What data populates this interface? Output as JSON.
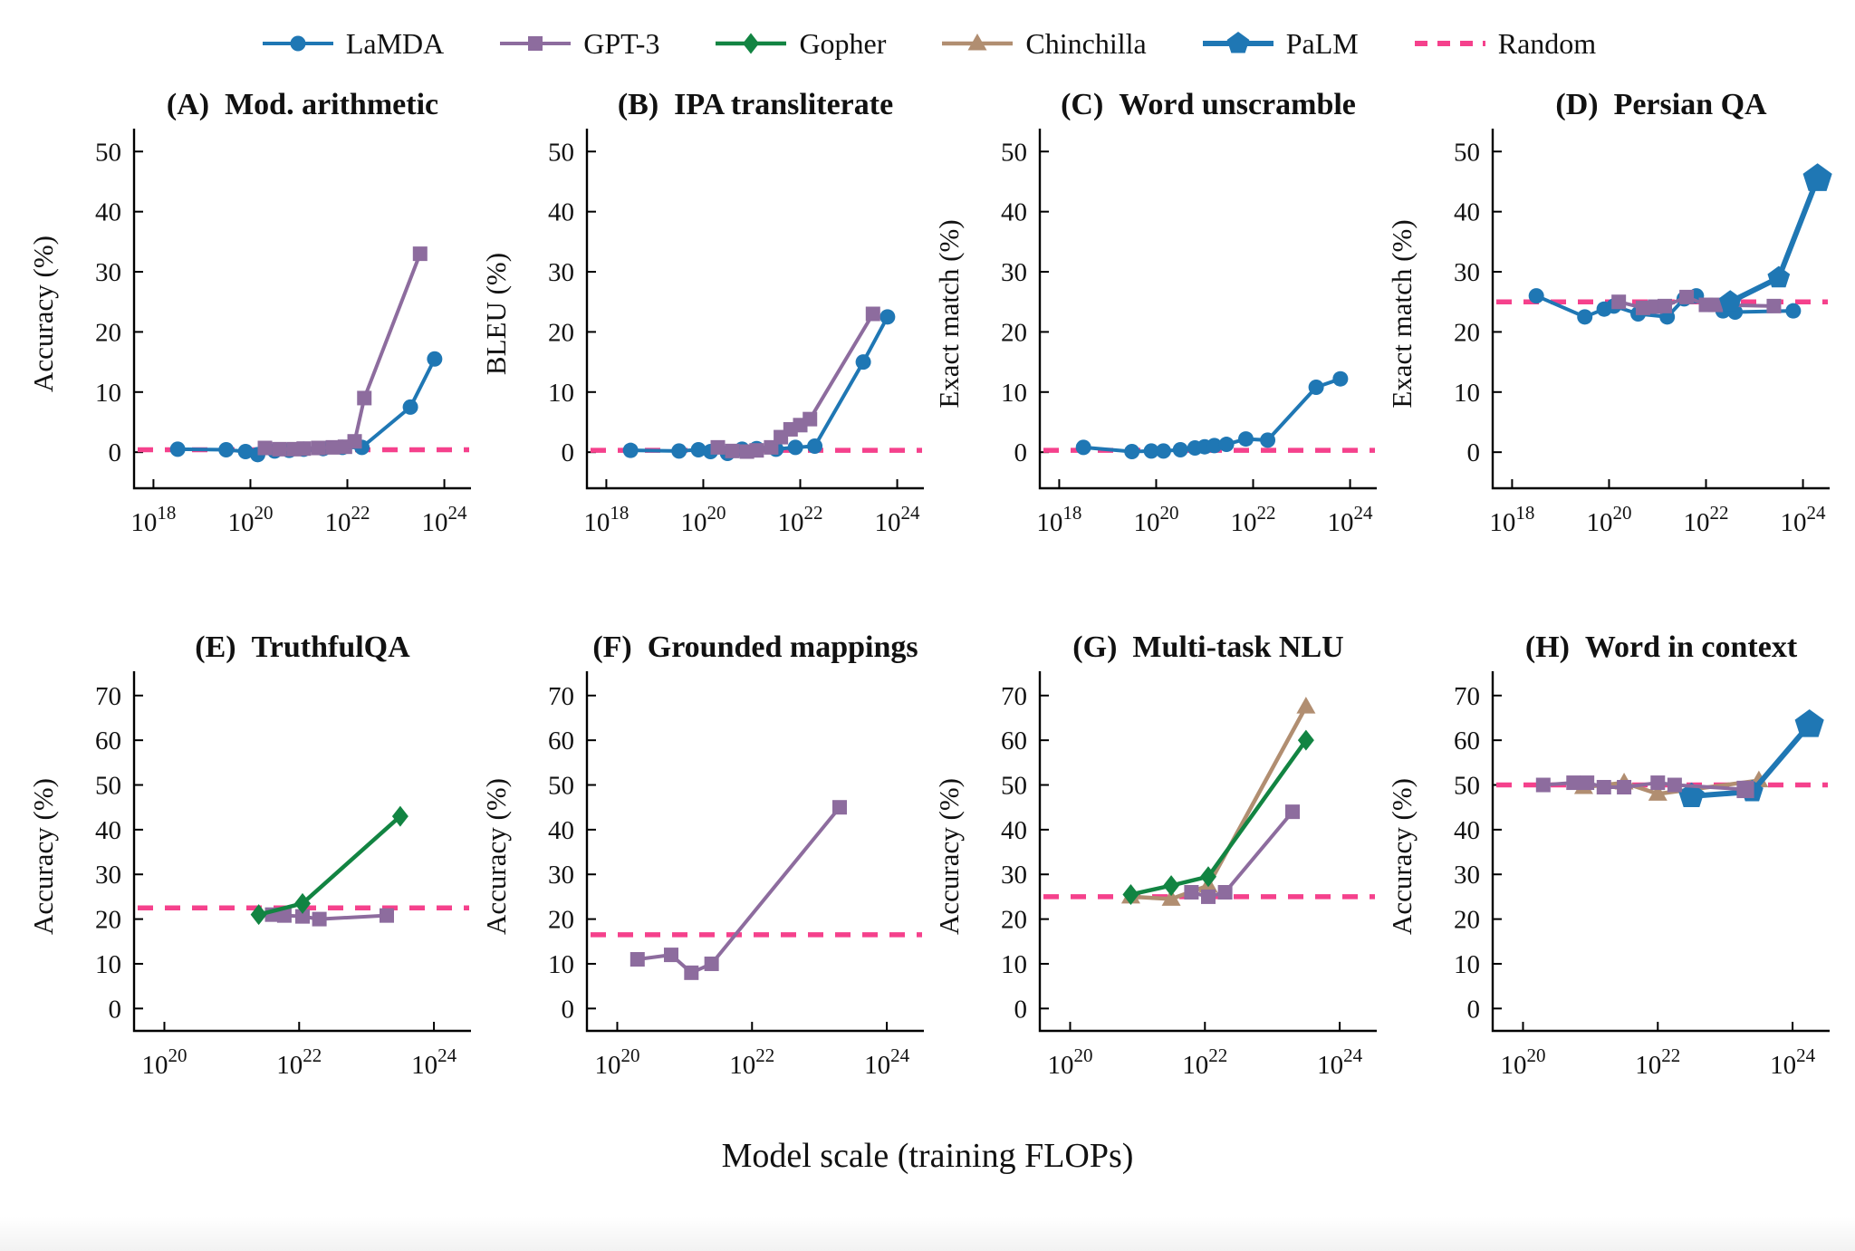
{
  "page": {
    "background": "#ffffff",
    "xaxis_label": "Model scale (training FLOPs)"
  },
  "legend": {
    "position": "top-center",
    "items": [
      {
        "model": "LaMDA",
        "label": "LaMDA"
      },
      {
        "model": "GPT-3",
        "label": "GPT-3"
      },
      {
        "model": "Gopher",
        "label": "Gopher"
      },
      {
        "model": "Chinchilla",
        "label": "Chinchilla"
      },
      {
        "model": "PaLM",
        "label": "PaLM"
      },
      {
        "model": "Random",
        "label": "Random"
      }
    ]
  },
  "models": {
    "LaMDA": {
      "color": "#1f77b4",
      "marker": "circle",
      "line_width": 4
    },
    "GPT-3": {
      "color": "#8d6c9e",
      "marker": "square",
      "line_width": 4
    },
    "Gopher": {
      "color": "#128442",
      "marker": "diamond",
      "line_width": 4.5
    },
    "Chinchilla": {
      "color": "#b18e71",
      "marker": "triangle",
      "line_width": 4.5
    },
    "PaLM": {
      "color": "#1f77b4",
      "marker": "pentagon",
      "line_width": 6
    },
    "Random": {
      "color": "#f5418c",
      "marker": "dash",
      "line_width": 5.5
    }
  },
  "chart_data": [
    {
      "type": "line",
      "id": "a",
      "panel": "(A)",
      "title": "Mod. arithmetic",
      "ylabel": "Accuracy (%)",
      "xticks_exponents": [
        18,
        20,
        22,
        24
      ],
      "xlim_log": [
        17.6,
        24.55
      ],
      "ylim": [
        -6,
        52
      ],
      "yticks": [
        0,
        10,
        20,
        30,
        40,
        50
      ],
      "grid": false,
      "random_baseline": 0.4,
      "series": [
        {
          "name": "LaMDA",
          "x_log": [
            18.5,
            19.5,
            19.9,
            20.15,
            20.5,
            20.8,
            21.1,
            21.5,
            21.9,
            22.3,
            23.3,
            23.8
          ],
          "y": [
            0.5,
            0.4,
            0.1,
            -0.4,
            0.2,
            0.3,
            0.5,
            0.6,
            0.8,
            0.8,
            7.5,
            15.5
          ]
        },
        {
          "name": "GPT-3",
          "x_log": [
            20.3,
            20.6,
            20.9,
            21.1,
            21.4,
            21.7,
            21.95,
            22.15,
            22.35,
            23.5
          ],
          "y": [
            0.7,
            0.5,
            0.5,
            0.6,
            0.7,
            0.8,
            0.9,
            1.8,
            9,
            33
          ]
        }
      ]
    },
    {
      "type": "line",
      "id": "b",
      "panel": "(B)",
      "title": "IPA transliterate",
      "ylabel": "BLEU (%)",
      "xticks_exponents": [
        18,
        20,
        22,
        24
      ],
      "xlim_log": [
        17.6,
        24.55
      ],
      "ylim": [
        -6,
        52
      ],
      "yticks": [
        0,
        10,
        20,
        30,
        40,
        50
      ],
      "grid": false,
      "random_baseline": 0.3,
      "series": [
        {
          "name": "LaMDA",
          "x_log": [
            18.5,
            19.5,
            19.9,
            20.15,
            20.5,
            20.8,
            21.1,
            21.5,
            21.9,
            22.3,
            23.3,
            23.8
          ],
          "y": [
            0.3,
            0.2,
            0.4,
            0.1,
            -0.2,
            0.5,
            0.6,
            0.5,
            0.8,
            1.0,
            15,
            22.5
          ]
        },
        {
          "name": "GPT-3",
          "x_log": [
            20.3,
            20.6,
            20.9,
            21.1,
            21.4,
            21.6,
            21.8,
            22.0,
            22.2,
            23.5
          ],
          "y": [
            0.8,
            0.2,
            0.1,
            0.3,
            0.8,
            2.5,
            3.8,
            4.5,
            5.5,
            23
          ]
        }
      ]
    },
    {
      "type": "line",
      "id": "c",
      "panel": "(C)",
      "title": "Word unscramble",
      "ylabel": "Exact match (%)",
      "xticks_exponents": [
        18,
        20,
        22,
        24
      ],
      "xlim_log": [
        17.6,
        24.55
      ],
      "ylim": [
        -6,
        52
      ],
      "yticks": [
        0,
        10,
        20,
        30,
        40,
        50
      ],
      "grid": false,
      "random_baseline": 0.3,
      "series": [
        {
          "name": "LaMDA",
          "x_log": [
            18.5,
            19.5,
            19.9,
            20.15,
            20.5,
            20.8,
            21.0,
            21.2,
            21.45,
            21.85,
            22.3,
            23.3,
            23.8
          ],
          "y": [
            0.8,
            0.1,
            0.2,
            0.2,
            0.4,
            0.7,
            0.9,
            1.1,
            1.3,
            2.2,
            2.0,
            10.8,
            12.2
          ]
        }
      ]
    },
    {
      "type": "line",
      "id": "d",
      "panel": "(D)",
      "title": "Persian QA",
      "ylabel": "Exact match (%)",
      "xticks_exponents": [
        18,
        20,
        22,
        24
      ],
      "xlim_log": [
        17.6,
        24.55
      ],
      "ylim": [
        -6,
        52
      ],
      "yticks": [
        0,
        10,
        20,
        30,
        40,
        50
      ],
      "grid": false,
      "random_baseline": 25,
      "series": [
        {
          "name": "LaMDA",
          "x_log": [
            18.5,
            19.5,
            19.9,
            20.1,
            20.6,
            21.2,
            21.55,
            21.8,
            22.35,
            22.6,
            23.8
          ],
          "y": [
            26,
            22.5,
            23.8,
            24.3,
            23,
            22.5,
            25.5,
            26,
            23.5,
            23.3,
            23.5
          ]
        },
        {
          "name": "GPT-3",
          "x_log": [
            20.2,
            20.7,
            20.95,
            21.15,
            21.6,
            22.0,
            22.2,
            23.4
          ],
          "y": [
            25,
            24,
            24.2,
            24.3,
            25.8,
            24.5,
            24.5,
            24.3
          ]
        },
        {
          "name": "PaLM",
          "x_log": [
            22.5,
            23.5,
            24.3
          ],
          "y": [
            25,
            29,
            45.5
          ],
          "sizes": [
            1,
            1,
            1.3
          ]
        }
      ]
    },
    {
      "type": "line",
      "id": "e",
      "panel": "(E)",
      "title": "TruthfulQA",
      "ylabel": "Accuracy (%)",
      "xticks_exponents": [
        20,
        22,
        24
      ],
      "xlim_log": [
        19.55,
        24.55
      ],
      "ylim": [
        -5,
        73
      ],
      "yticks": [
        0,
        10,
        20,
        30,
        40,
        50,
        60,
        70
      ],
      "grid": false,
      "random_baseline": 22.5,
      "series": [
        {
          "name": "GPT-3",
          "x_log": [
            21.6,
            21.78,
            22.05,
            22.3,
            23.3
          ],
          "y": [
            21,
            20.8,
            20.6,
            20,
            20.8
          ]
        },
        {
          "name": "Gopher",
          "x_log": [
            21.4,
            22.05,
            23.5
          ],
          "y": [
            21,
            23.5,
            43
          ]
        }
      ]
    },
    {
      "type": "line",
      "id": "f",
      "panel": "(F)",
      "title": "Grounded mappings",
      "ylabel": "Accuracy (%)",
      "xticks_exponents": [
        20,
        22,
        24
      ],
      "xlim_log": [
        19.55,
        24.55
      ],
      "ylim": [
        -5,
        73
      ],
      "yticks": [
        0,
        10,
        20,
        30,
        40,
        50,
        60,
        70
      ],
      "grid": false,
      "random_baseline": 16.5,
      "series": [
        {
          "name": "GPT-3",
          "x_log": [
            20.3,
            20.8,
            21.1,
            21.4,
            23.3
          ],
          "y": [
            11,
            12,
            8,
            10,
            45
          ]
        }
      ]
    },
    {
      "type": "line",
      "id": "g",
      "panel": "(G)",
      "title": "Multi-task NLU",
      "ylabel": "Accuracy (%)",
      "xticks_exponents": [
        20,
        22,
        24
      ],
      "xlim_log": [
        19.55,
        24.55
      ],
      "ylim": [
        -5,
        73
      ],
      "yticks": [
        0,
        10,
        20,
        30,
        40,
        50,
        60,
        70
      ],
      "grid": false,
      "random_baseline": 25,
      "series": [
        {
          "name": "Chinchilla",
          "x_log": [
            20.9,
            21.5,
            22.05,
            23.5
          ],
          "y": [
            25,
            24.5,
            27.5,
            67.5
          ]
        },
        {
          "name": "GPT-3",
          "x_log": [
            21.8,
            22.05,
            22.3,
            23.3
          ],
          "y": [
            26,
            25,
            26,
            44
          ]
        },
        {
          "name": "Gopher",
          "x_log": [
            20.9,
            21.5,
            22.05,
            23.5
          ],
          "y": [
            25.5,
            27.5,
            29.5,
            60
          ]
        }
      ]
    },
    {
      "type": "line",
      "id": "h",
      "panel": "(H)",
      "title": "Word in context",
      "ylabel": "Accuracy (%)",
      "xticks_exponents": [
        20,
        22,
        24
      ],
      "xlim_log": [
        19.55,
        24.55
      ],
      "ylim": [
        -5,
        73
      ],
      "yticks": [
        0,
        10,
        20,
        30,
        40,
        50,
        60,
        70
      ],
      "grid": false,
      "random_baseline": 50,
      "series": [
        {
          "name": "Chinchilla",
          "x_log": [
            20.9,
            21.5,
            22.0,
            23.5
          ],
          "y": [
            49.5,
            50.5,
            48,
            51
          ]
        },
        {
          "name": "PaLM",
          "x_log": [
            22.5,
            23.4,
            24.25
          ],
          "y": [
            47.5,
            48.5,
            63.5
          ],
          "sizes": [
            1.15,
            1,
            1.3
          ]
        },
        {
          "name": "GPT-3",
          "x_log": [
            20.3,
            20.75,
            20.95,
            21.2,
            21.5,
            22.0,
            22.25,
            23.3
          ],
          "y": [
            50,
            50.5,
            50.5,
            49.5,
            49.5,
            50.5,
            50,
            49
          ],
          "sizes": [
            1,
            1,
            1,
            1,
            1,
            1,
            1,
            1.2
          ]
        }
      ]
    }
  ]
}
